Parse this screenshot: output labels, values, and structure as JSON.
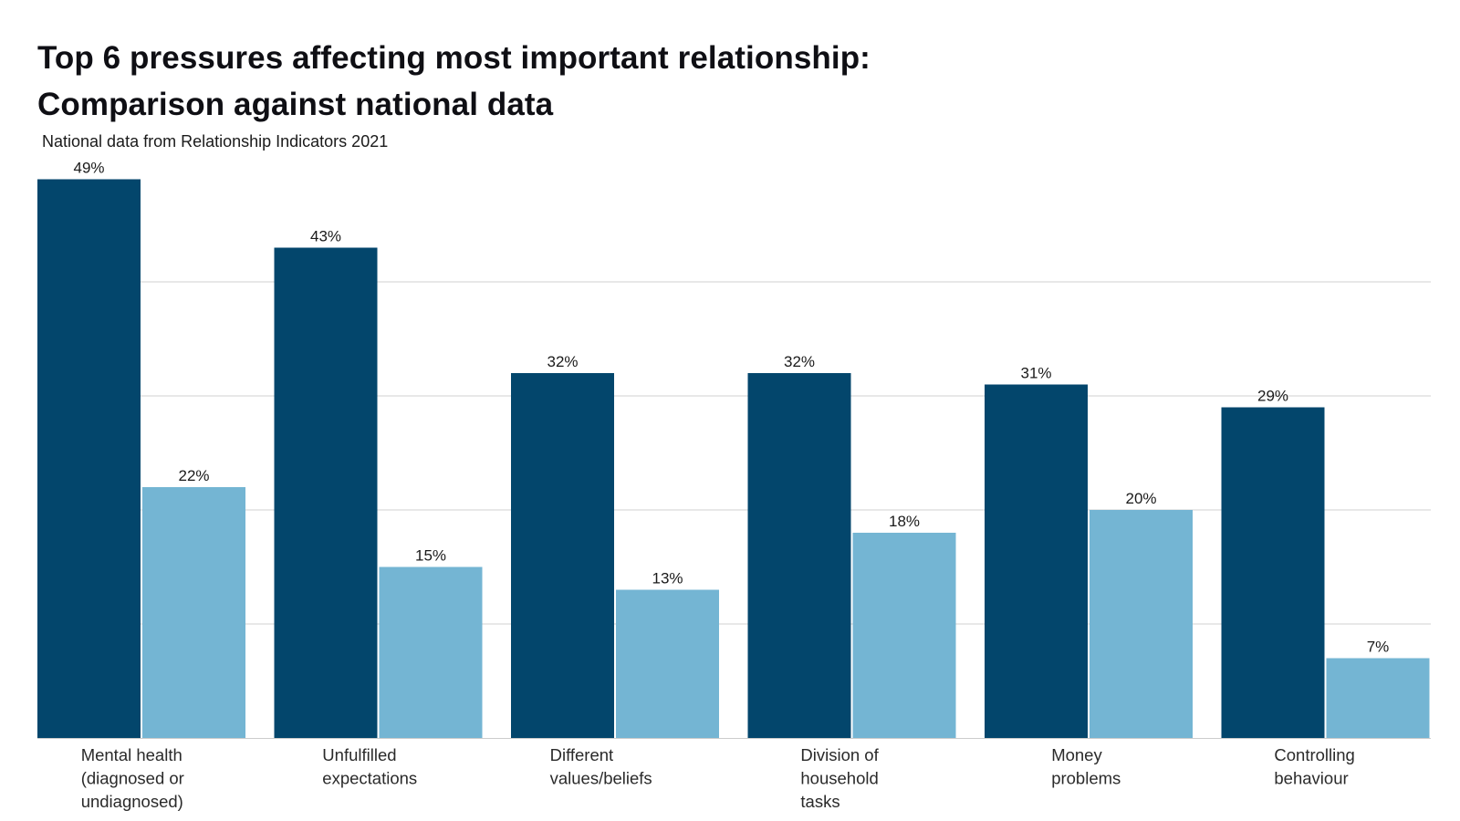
{
  "chart_data": {
    "type": "bar",
    "title_lines": [
      "Top 6 pressures affecting most important relationship:",
      "Comparison against national data"
    ],
    "subtitle": "National data from Relationship Indicators 2021",
    "categories": [
      [
        "Mental health",
        "(diagnosed or",
        "undiagnosed)"
      ],
      [
        "Unfulfilled",
        "expectations"
      ],
      [
        "Different",
        "values/beliefs"
      ],
      [
        "Division of",
        "household",
        "tasks"
      ],
      [
        "Money",
        "problems"
      ],
      [
        "Controlling",
        "behaviour"
      ]
    ],
    "series": [
      {
        "values": [
          49,
          43,
          32,
          32,
          31,
          29
        ],
        "labels": [
          "49%",
          "43%",
          "32%",
          "32%",
          "31%",
          "29%"
        ],
        "color": "#03466c"
      },
      {
        "values": [
          22,
          15,
          13,
          18,
          20,
          7
        ],
        "labels": [
          "22%",
          "15%",
          "13%",
          "18%",
          "20%",
          "7%"
        ],
        "color": "#74b5d3"
      }
    ],
    "ylim": [
      0,
      50
    ],
    "gridlines": [
      10,
      20,
      30,
      40
    ],
    "grid": true,
    "legend": "none",
    "colors": {
      "gridline": "#d9d9d9",
      "axis": "#cccccc"
    }
  }
}
